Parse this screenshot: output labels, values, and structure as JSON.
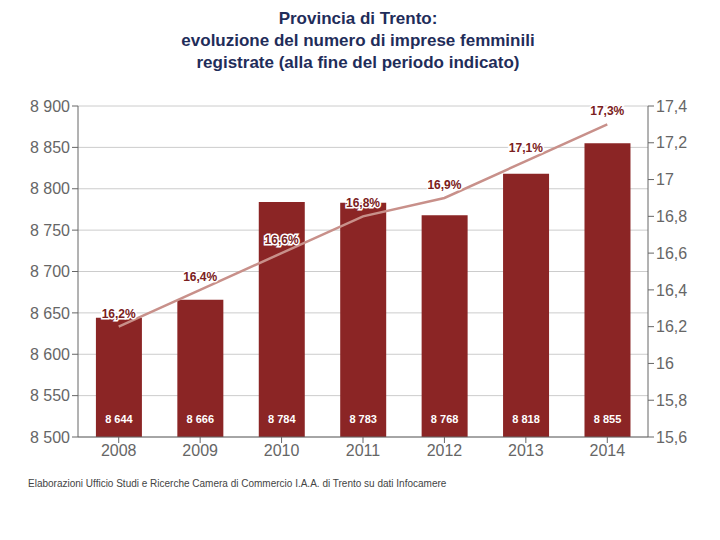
{
  "chart_data": {
    "type": "bar",
    "title": "Provincia di Trento:\nevoluzione del numero di imprese femminili\nregistrate (alla fine del periodo indicato)",
    "annotations": [
      "Elaborazioni Ufficio Studi e Ricerche Camera di Commercio I.A.A. di Trento su dati Infocamere"
    ],
    "categories": [
      2008,
      2009,
      2010,
      2011,
      2012,
      2013,
      2014
    ],
    "series": [
      {
        "type": "bar",
        "color": "#8B2525",
        "values": [
          8644,
          8666,
          8784,
          8783,
          8768,
          8818,
          8855
        ],
        "value_labels": [
          "8 644",
          "8 666",
          "8 784",
          "8 783",
          "8 768",
          "8 818",
          "8 855"
        ],
        "data_labels": true
      },
      {
        "type": "line",
        "axis": "y2",
        "color": "#C8908A",
        "values": [
          16.2,
          16.4,
          16.6,
          16.8,
          16.9,
          17.1,
          17.3
        ],
        "value_labels": [
          "16,2%",
          "16,4%",
          "16,6%",
          "16,8%",
          "16,9%",
          "17,1%",
          "17,3%"
        ],
        "data_labels": true
      }
    ],
    "ylim": [
      8500,
      8900
    ],
    "yticks": [
      {
        "value": 8500,
        "label": "8 500"
      },
      {
        "value": 8550,
        "label": "8 550"
      },
      {
        "value": 8600,
        "label": "8 600"
      },
      {
        "value": 8650,
        "label": "8 650"
      },
      {
        "value": 8700,
        "label": "8 700"
      },
      {
        "value": 8750,
        "label": "8 750"
      },
      {
        "value": 8800,
        "label": "8 800"
      },
      {
        "value": 8850,
        "label": "8 850"
      },
      {
        "value": 8900,
        "label": "8 900"
      }
    ],
    "y2lim": [
      15.6,
      17.4
    ],
    "y2ticks": [
      {
        "value": 15.6,
        "label": "15,6"
      },
      {
        "value": 15.8,
        "label": "15,8"
      },
      16,
      {
        "value": 16.2,
        "label": "16,2"
      },
      {
        "value": 16.4,
        "label": "16,4"
      },
      {
        "value": 16.6,
        "label": "16,6"
      },
      {
        "value": 16.8,
        "label": "16,8"
      },
      17,
      {
        "value": 17.2,
        "label": "17,2"
      },
      {
        "value": 17.4,
        "label": "17,4"
      }
    ],
    "grid": true
  }
}
